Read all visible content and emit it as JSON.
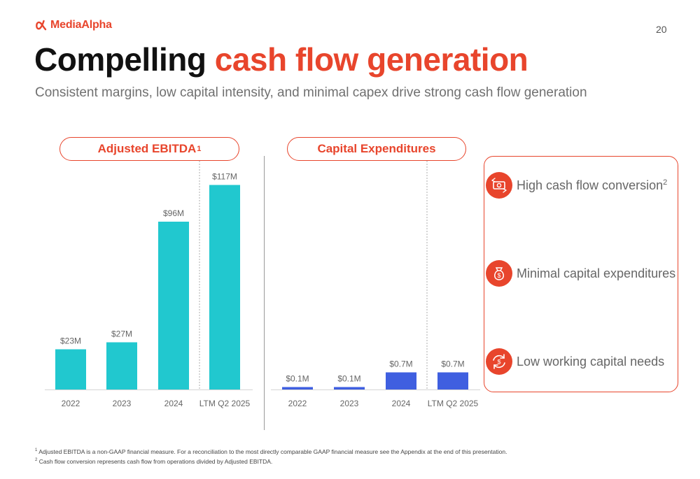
{
  "header": {
    "logo_text": "MediaAlpha",
    "page_number": "20",
    "title_part1": "Compelling ",
    "title_part2": "cash flow generation",
    "subtitle": "Consistent margins, low capital intensity, and minimal capex drive strong cash flow generation"
  },
  "colors": {
    "brand": "#e8452c",
    "ebitda_bar": "#21c8cf",
    "capex_bar": "#3f5fe0"
  },
  "pills": {
    "ebitda_label": "Adjusted EBITDA",
    "ebitda_sup": "1",
    "capex_label": "Capital Expenditures"
  },
  "chart_data": [
    {
      "type": "bar",
      "title": "Adjusted EBITDA1",
      "categories": [
        "2022",
        "2023",
        "2024",
        "LTM Q2 2025"
      ],
      "values": [
        23,
        27,
        96,
        117
      ],
      "labels": [
        "$23M",
        "$27M",
        "$96M",
        "$117M"
      ],
      "unit": "$M",
      "ylim": [
        0,
        130
      ],
      "grid": false,
      "color": "#21c8cf"
    },
    {
      "type": "bar",
      "title": "Capital Expenditures",
      "categories": [
        "2022",
        "2023",
        "2024",
        "LTM Q2 2025"
      ],
      "values": [
        0.1,
        0.1,
        0.7,
        0.7
      ],
      "labels": [
        "$0.1M",
        "$0.1M",
        "$0.7M",
        "$0.7M"
      ],
      "unit": "$M",
      "ylim": [
        0,
        10
      ],
      "grid": false,
      "color": "#3f5fe0"
    }
  ],
  "callouts": [
    {
      "label": "High cash flow conversion",
      "sup": "2",
      "icon": "cash-exchange-icon"
    },
    {
      "label": "Minimal capital expenditures",
      "sup": "",
      "icon": "money-bag-icon"
    },
    {
      "label": "Low working capital needs",
      "sup": "",
      "icon": "dollar-cycle-icon"
    }
  ],
  "footnotes": [
    {
      "sup": "1",
      "text": " Adjusted EBITDA is a non-GAAP financial measure. For a reconciliation to the most directly comparable GAAP financial measure see the Appendix at the end of this presentation."
    },
    {
      "sup": "2",
      "text": " Cash flow conversion represents cash flow from operations divided by Adjusted EBITDA."
    }
  ]
}
